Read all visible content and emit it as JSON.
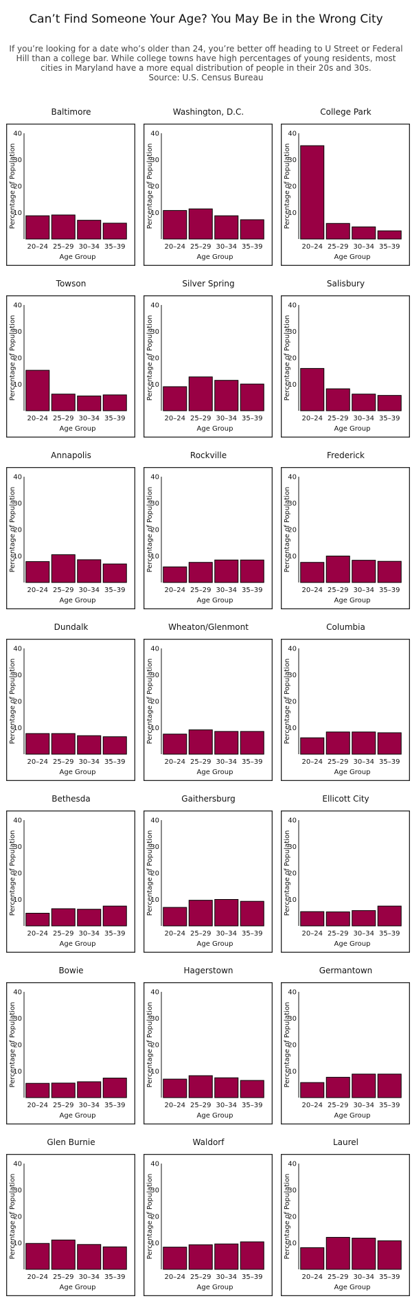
{
  "header": {
    "title": "Can’t Find Someone Your Age? You May Be in the Wrong City",
    "subtitle": "If you’re looking for a date who’s older than 24, you’re better off heading to U Street or Federal Hill than a college bar. While college towns have high percentages of young residents, most cities in Maryland have a more equal distribution of people in their 20s and 30s.",
    "source": "Source: U.S. Census Bureau"
  },
  "colors": {
    "bar": "#990044",
    "frame": "#222222",
    "background": "#ffffff"
  },
  "chart_data": {
    "type": "bar",
    "categories": [
      "20–24",
      "25–29",
      "30–34",
      "35–39"
    ],
    "xlabel": "Age Group",
    "ylabel": "Percentage of Population",
    "ylim": [
      0,
      40
    ],
    "yticks": [
      10,
      20,
      30,
      40
    ],
    "grid": false,
    "panels": [
      {
        "title": "Baltimore",
        "values": [
          8.8,
          9.1,
          7.1,
          6.0
        ]
      },
      {
        "title": "Washington, D.C.",
        "values": [
          10.8,
          11.4,
          8.8,
          7.3
        ]
      },
      {
        "title": "College Park",
        "values": [
          35.3,
          5.9,
          4.6,
          3.1
        ]
      },
      {
        "title": "Towson",
        "values": [
          15.3,
          6.3,
          5.6,
          6.0
        ]
      },
      {
        "title": "Silver Spring",
        "values": [
          9.1,
          12.8,
          11.5,
          10.1
        ]
      },
      {
        "title": "Salisbury",
        "values": [
          16.0,
          8.3,
          6.3,
          5.8
        ]
      },
      {
        "title": "Annapolis",
        "values": [
          7.9,
          10.5,
          8.6,
          7.0
        ]
      },
      {
        "title": "Rockville",
        "values": [
          5.9,
          7.6,
          8.5,
          8.5
        ]
      },
      {
        "title": "Frederick",
        "values": [
          7.6,
          10.0,
          8.4,
          8.0
        ]
      },
      {
        "title": "Dundalk",
        "values": [
          7.8,
          7.8,
          7.0,
          6.6
        ]
      },
      {
        "title": "Wheaton/Glenmont",
        "values": [
          7.6,
          9.2,
          8.6,
          8.6
        ]
      },
      {
        "title": "Columbia",
        "values": [
          6.2,
          8.4,
          8.4,
          8.1
        ]
      },
      {
        "title": "Bethesda",
        "values": [
          4.8,
          6.5,
          6.3,
          7.5
        ]
      },
      {
        "title": "Gaithersburg",
        "values": [
          7.0,
          9.7,
          10.0,
          9.3
        ]
      },
      {
        "title": "Ellicott City",
        "values": [
          5.4,
          5.3,
          5.8,
          7.5
        ]
      },
      {
        "title": "Bowie",
        "values": [
          5.4,
          5.5,
          6.0,
          7.4
        ]
      },
      {
        "title": "Hagerstown",
        "values": [
          7.0,
          8.3,
          7.5,
          6.5
        ]
      },
      {
        "title": "Germantown",
        "values": [
          5.7,
          7.7,
          8.9,
          8.9
        ]
      },
      {
        "title": "Glen Burnie",
        "values": [
          9.8,
          11.1,
          9.4,
          8.5
        ]
      },
      {
        "title": "Waldorf",
        "values": [
          8.4,
          9.3,
          9.6,
          10.4
        ]
      },
      {
        "title": "Laurel",
        "values": [
          8.2,
          12.1,
          11.8,
          10.8
        ]
      }
    ]
  }
}
